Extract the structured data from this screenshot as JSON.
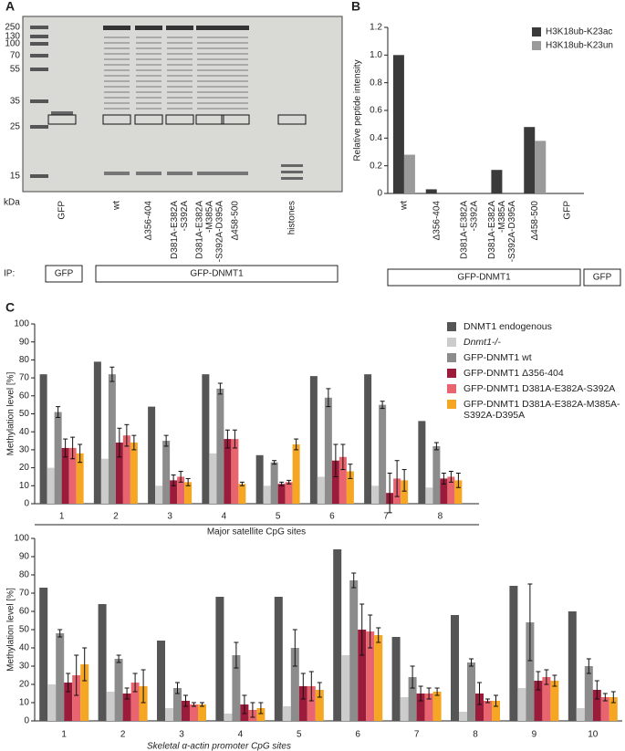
{
  "panels": [
    "A",
    "B",
    "C"
  ],
  "gel": {
    "markers": [
      250,
      130,
      100,
      70,
      55,
      35,
      25,
      15
    ],
    "unit": "kDa",
    "lanes": [
      [
        "GFP"
      ],
      [
        "wt"
      ],
      [
        "Δ356-404"
      ],
      [
        "D381A-E382A",
        "-S392A"
      ],
      [
        "D381A-E382A",
        "-M385A",
        "-S392A-D395A"
      ],
      [
        "Δ458-500"
      ],
      [
        "histones"
      ]
    ],
    "ip_label": "IP:",
    "ip_groups": [
      "GFP",
      "GFP-DNMT1"
    ]
  },
  "chart_data": [
    {
      "type": "bar",
      "ylabel": "Relative peptide intensity",
      "categories": [
        [
          "wt"
        ],
        [
          "Δ356-404"
        ],
        [
          "D381A-E382A",
          "-S392A"
        ],
        [
          "D381A-E382A",
          "-M385A",
          "-S392A-D395A"
        ],
        [
          "Δ458-500"
        ],
        [
          "GFP"
        ]
      ],
      "series": [
        {
          "name": "H3K18ub-K23ac",
          "color": "#3a3a3a",
          "values": [
            1.0,
            0.03,
            0,
            0.17,
            0.48,
            0
          ]
        },
        {
          "name": "H3K18ub-K23un",
          "color": "#9a9a9a",
          "values": [
            0.28,
            0,
            0,
            0,
            0.38,
            0
          ]
        }
      ],
      "ylim": [
        0,
        1.2
      ],
      "yticks": [
        0,
        0.2,
        0.4,
        0.6,
        0.8,
        {
          "value": 1,
          "label": "1.0"
        },
        1.2
      ],
      "groups": [
        "GFP-DNMT1",
        "GFP"
      ],
      "legend": "top-right"
    },
    {
      "type": "bar",
      "ylabel": "Methylation level [%]",
      "xlabel": "Major satellite CpG sites",
      "categories": [
        "1",
        "2",
        "3",
        "4",
        "5",
        "6",
        "7",
        "8"
      ],
      "series": [
        {
          "name": "DNMT1 endogenous",
          "color": "#555555",
          "values": [
            72,
            79,
            54,
            72,
            27,
            71,
            72,
            46
          ]
        },
        {
          "name": "Dnmt1-/-",
          "color": "#cccccc",
          "values": [
            20,
            25,
            10,
            28,
            10,
            15,
            10,
            9
          ]
        },
        {
          "name": "GFP-DNMT1 wt",
          "color": "#8c8c8c",
          "values": [
            51,
            72,
            35,
            64,
            23,
            59,
            55,
            32
          ],
          "errors": [
            3,
            4,
            3,
            3,
            1,
            5,
            2,
            2
          ]
        },
        {
          "name": "GFP-DNMT1 Δ356-404",
          "color": "#9b1b3b",
          "values": [
            31,
            34,
            13,
            36,
            11,
            24,
            6,
            14
          ],
          "errors": [
            5,
            8,
            3,
            5,
            1,
            9,
            11,
            3
          ]
        },
        {
          "name": "GFP-DNMT1 D381A-E382A-S392A",
          "color": "#e8646e",
          "values": [
            31,
            38,
            15,
            36,
            12,
            26,
            14,
            15
          ],
          "errors": [
            6,
            6,
            3,
            5,
            1,
            7,
            10,
            3
          ]
        },
        {
          "name": "GFP-DNMT1 D381A-E382A-M385A-S392A-D395A",
          "color": "#f5a623",
          "values": [
            28,
            34,
            12,
            11,
            33,
            18,
            13,
            13
          ],
          "errors": [
            5,
            4,
            2,
            1,
            3,
            4,
            6,
            4
          ]
        }
      ],
      "ylim": [
        0,
        100
      ],
      "yticks": [
        0,
        10,
        20,
        30,
        40,
        50,
        60,
        70,
        80,
        90,
        100
      ],
      "legend": "top-right"
    },
    {
      "type": "bar",
      "ylabel": "Methylation level [%]",
      "xlabel": "Skeletal α-actin promoter CpG sites",
      "categories": [
        "1",
        "2",
        "3",
        "4",
        "5",
        "6",
        "7",
        "8",
        "9",
        "10"
      ],
      "series": [
        {
          "color": "#555555",
          "values": [
            73,
            64,
            44,
            68,
            68,
            94,
            46,
            58,
            74,
            60
          ]
        },
        {
          "color": "#cccccc",
          "values": [
            20,
            16,
            7,
            4,
            8,
            36,
            13,
            5,
            18,
            7
          ]
        },
        {
          "color": "#8c8c8c",
          "values": [
            48,
            34,
            18,
            36,
            40,
            77,
            24,
            32,
            54,
            30
          ],
          "errors": [
            2,
            2,
            3,
            7,
            10,
            4,
            6,
            2,
            21,
            4
          ]
        },
        {
          "color": "#9b1b3b",
          "values": [
            21,
            15,
            11,
            9,
            19,
            50,
            15,
            15,
            22,
            17
          ],
          "errors": [
            5,
            3,
            3,
            5,
            7,
            14,
            4,
            6,
            5,
            5
          ]
        },
        {
          "color": "#e8646e",
          "values": [
            25,
            21,
            9,
            6,
            19,
            49,
            15,
            11,
            24,
            13
          ],
          "errors": [
            11,
            5,
            1,
            4,
            8,
            9,
            3,
            1,
            4,
            2
          ]
        },
        {
          "color": "#f5a623",
          "values": [
            31,
            19,
            9,
            7,
            17,
            47,
            16,
            11,
            22,
            13
          ],
          "errors": [
            9,
            9,
            1,
            3,
            4,
            4,
            2,
            3,
            3,
            3
          ]
        }
      ],
      "ylim": [
        0,
        100
      ],
      "yticks": [
        0,
        10,
        20,
        30,
        40,
        50,
        60,
        70,
        80,
        90,
        100
      ]
    }
  ]
}
